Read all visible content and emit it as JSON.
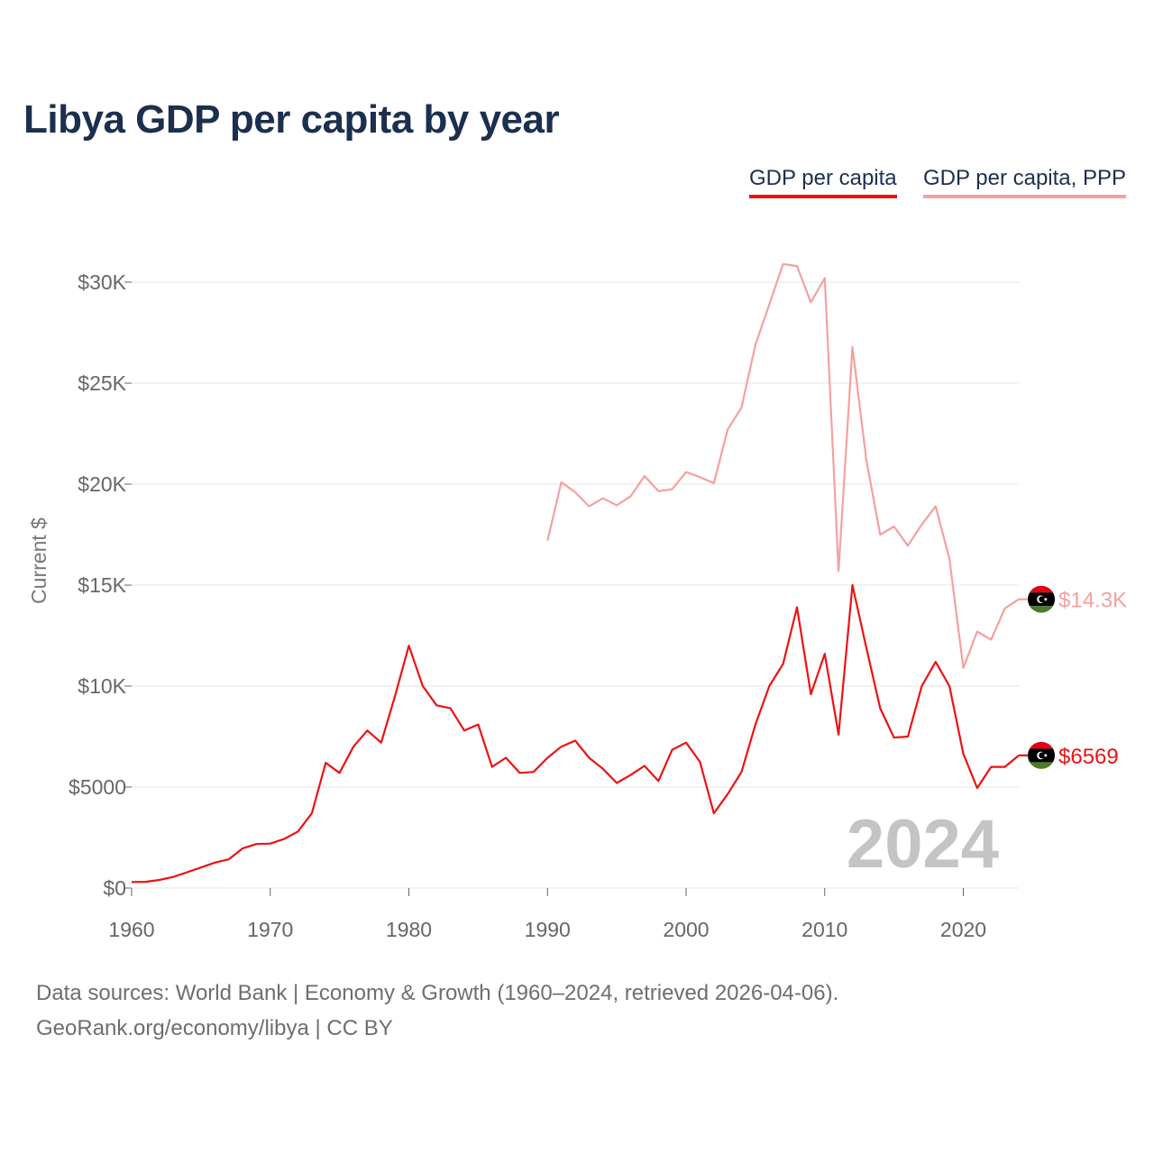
{
  "chart_data": {
    "type": "line",
    "title": "Libya GDP per capita by year",
    "ylabel": "Current $",
    "xlabel": "",
    "xlim": [
      1960,
      2024
    ],
    "ylim": [
      0,
      30000
    ],
    "y_ticks": [
      {
        "value": 0,
        "label": "$0"
      },
      {
        "value": 5000,
        "label": "$5000"
      },
      {
        "value": 10000,
        "label": "$10K"
      },
      {
        "value": 15000,
        "label": "$15K"
      },
      {
        "value": 20000,
        "label": "$20K"
      },
      {
        "value": 25000,
        "label": "$25K"
      },
      {
        "value": 30000,
        "label": "$30K"
      }
    ],
    "x_ticks": [
      {
        "value": 1960,
        "label": "1960"
      },
      {
        "value": 1970,
        "label": "1970"
      },
      {
        "value": 1980,
        "label": "1980"
      },
      {
        "value": 1990,
        "label": "1990"
      },
      {
        "value": 2000,
        "label": "2000"
      },
      {
        "value": 2010,
        "label": "2010"
      },
      {
        "value": 2020,
        "label": "2020"
      }
    ],
    "grid": true,
    "legend_position": "top-right",
    "year_overlay": "2024",
    "series": [
      {
        "name": "GDP per capita",
        "color": "#ee1111",
        "end_label": "$6569",
        "start_year": 1960,
        "values": [
          300,
          310,
          400,
          550,
          780,
          1020,
          1260,
          1420,
          1960,
          2180,
          2200,
          2430,
          2800,
          3700,
          6200,
          5700,
          7000,
          7800,
          7200,
          9500,
          12000,
          10000,
          9050,
          8900,
          7800,
          8100,
          6000,
          6450,
          5700,
          5750,
          6450,
          7000,
          7300,
          6450,
          5900,
          5200,
          5600,
          6050,
          5300,
          6850,
          7200,
          6250,
          3700,
          4650,
          5750,
          8100,
          10000,
          11100,
          13900,
          9600,
          11600,
          7600,
          15000,
          11900,
          8900,
          7450,
          7500,
          10000,
          11200,
          10000,
          6650,
          4950,
          6000,
          6000,
          6569
        ]
      },
      {
        "name": "GDP per capita, PPP",
        "color": "#f5a0a0",
        "end_label": "$14.3K",
        "start_year": 1990,
        "values": [
          17200,
          20100,
          19600,
          18900,
          19300,
          18950,
          19400,
          20400,
          19650,
          19750,
          20600,
          20350,
          20050,
          22700,
          23800,
          26900,
          28900,
          30900,
          30800,
          29000,
          30200,
          15700,
          26800,
          21200,
          17500,
          17900,
          16950,
          18000,
          18900,
          16300,
          10900,
          12700,
          12300,
          13850,
          14300
        ]
      }
    ]
  },
  "footer": {
    "source": "Data sources: World Bank | Economy & Growth (1960–2024, retrieved 2026-04-06).",
    "attribution": "GeoRank.org/economy/libya | CC BY"
  }
}
